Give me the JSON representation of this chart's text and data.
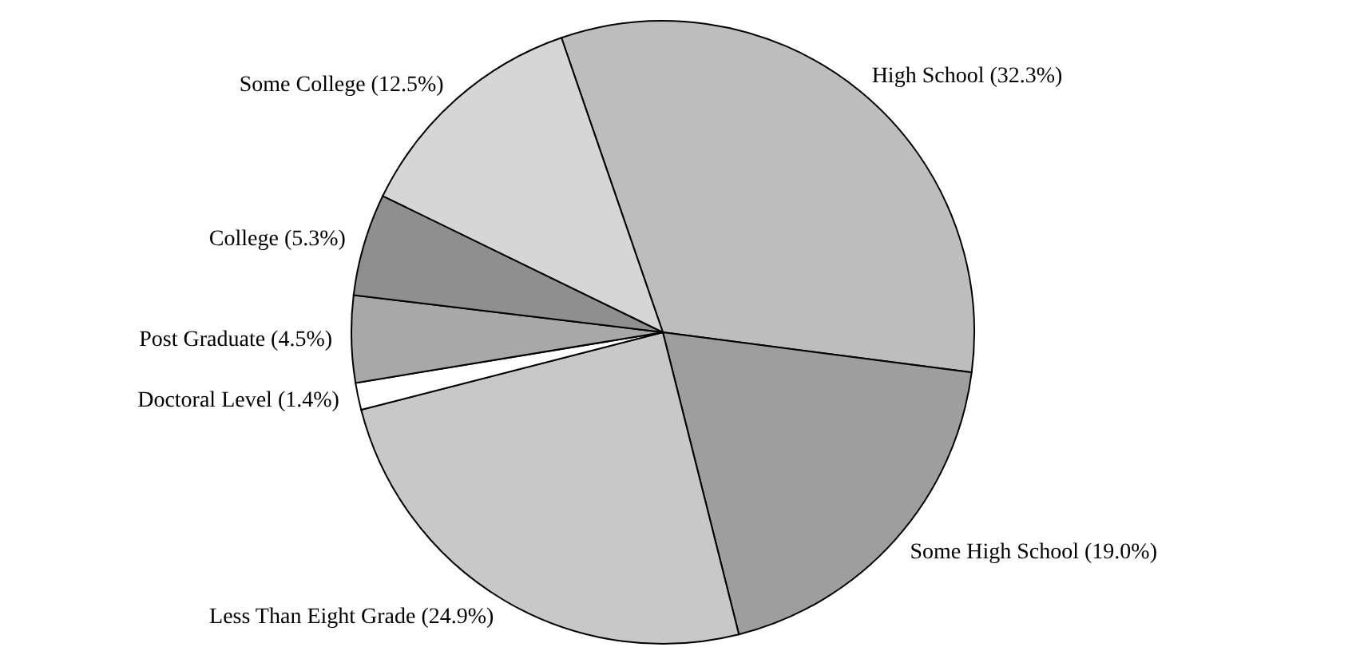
{
  "chart_data": {
    "type": "pie",
    "categories": [
      "High School",
      "Some High School",
      "Less Than Eight Grade",
      "Doctoral Level",
      "Post Graduate",
      "College",
      "Some College"
    ],
    "values": [
      32.3,
      19.0,
      24.9,
      1.4,
      4.5,
      5.3,
      12.5
    ],
    "value_labels": [
      "(32.3%)",
      "(19.0%)",
      "(24.9%)",
      "(1.4%)",
      "(4.5%)",
      "(5.3%)",
      "(12.5%)"
    ],
    "colors": [
      "#bdbdbd",
      "#9e9e9e",
      "#c8c8c8",
      "#ffffff",
      "#a8a8a8",
      "#8f8f8f",
      "#d6d6d6"
    ]
  }
}
